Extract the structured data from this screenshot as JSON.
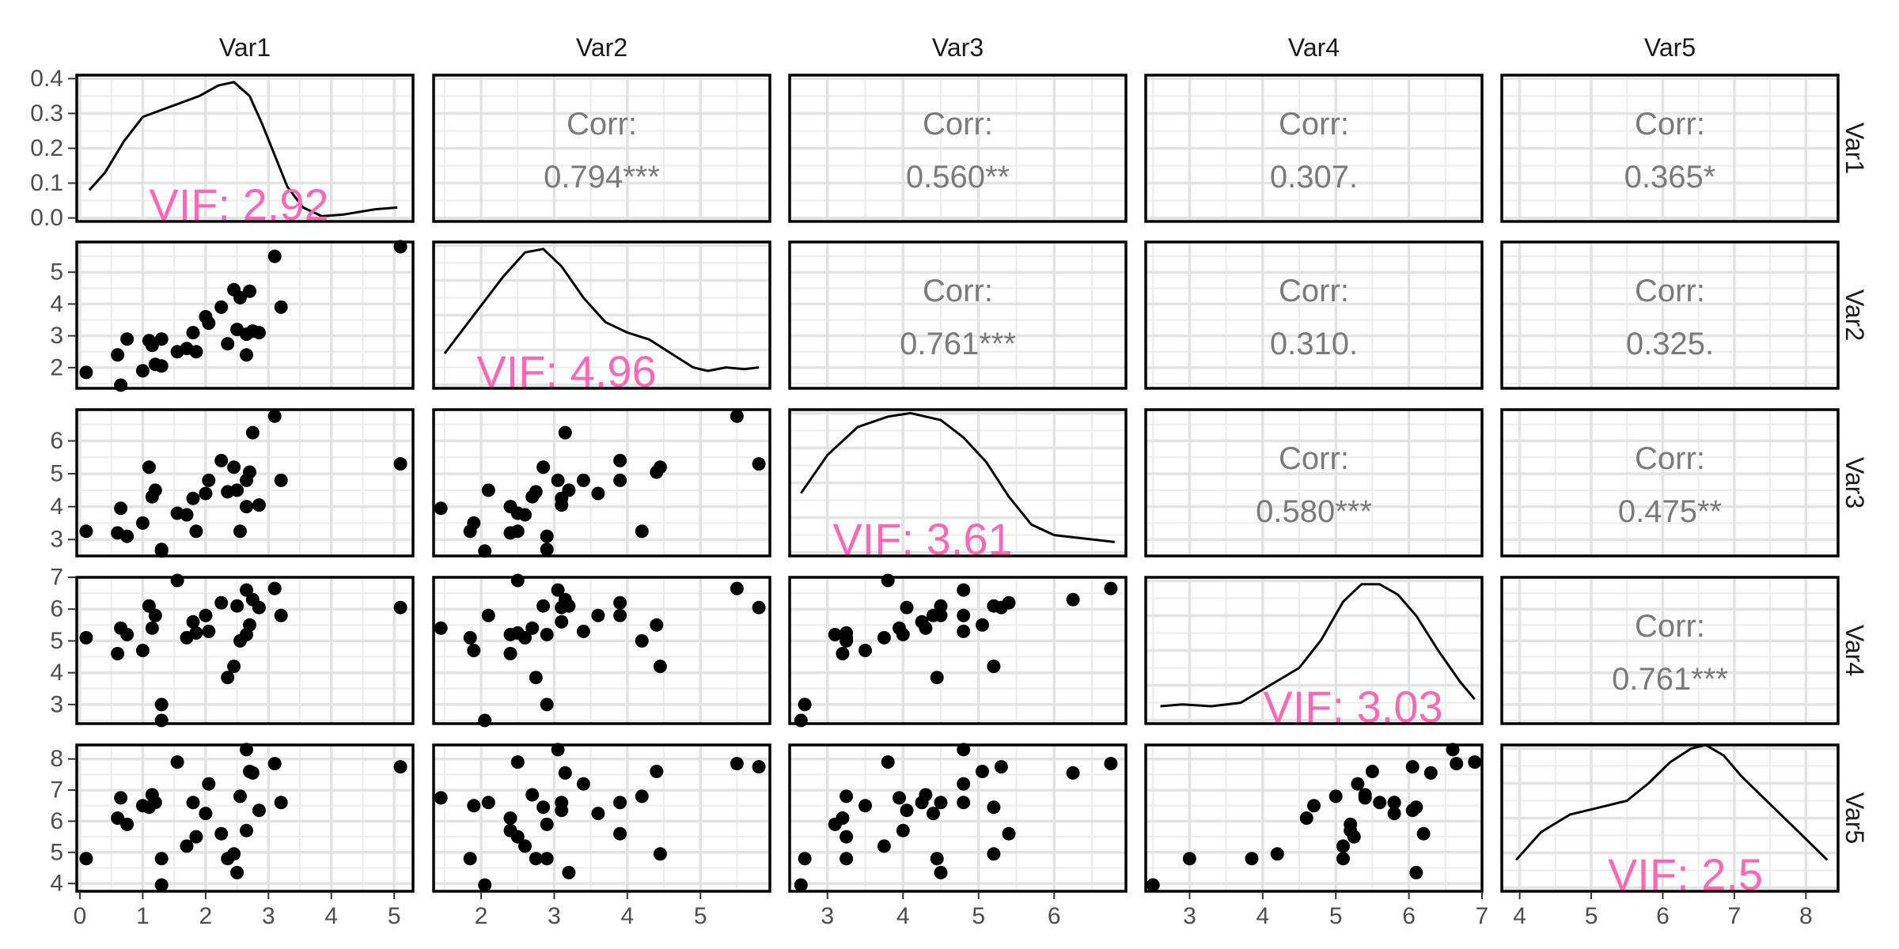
{
  "chart_data": {
    "type": "scatter",
    "variables": [
      "Var1",
      "Var2",
      "Var3",
      "Var4",
      "Var5"
    ],
    "column_labels": [
      "Var1",
      "Var2",
      "Var3",
      "Var4",
      "Var5"
    ],
    "row_labels": [
      "Var1",
      "Var2",
      "Var3",
      "Var4",
      "Var5"
    ],
    "corr_title": "Corr:",
    "correlations": [
      {
        "row": 0,
        "col": 1,
        "value": "0.794***"
      },
      {
        "row": 0,
        "col": 2,
        "value": "0.560**"
      },
      {
        "row": 0,
        "col": 3,
        "value": "0.307."
      },
      {
        "row": 0,
        "col": 4,
        "value": "0.365*"
      },
      {
        "row": 1,
        "col": 2,
        "value": "0.761***"
      },
      {
        "row": 1,
        "col": 3,
        "value": "0.310."
      },
      {
        "row": 1,
        "col": 4,
        "value": "0.325."
      },
      {
        "row": 2,
        "col": 3,
        "value": "0.580***"
      },
      {
        "row": 2,
        "col": 4,
        "value": "0.475**"
      },
      {
        "row": 3,
        "col": 4,
        "value": "0.761***"
      }
    ],
    "vif_labels": [
      "VIF: 2.92",
      "VIF: 4.96",
      "VIF: 3.61",
      "VIF: 3.03",
      "VIF: 2.5"
    ],
    "x_axes": [
      {
        "ticks": [
          0,
          1,
          2,
          3,
          4,
          5
        ],
        "range": [
          -0.05,
          5.3
        ]
      },
      {
        "ticks": [
          2,
          3,
          4,
          5
        ],
        "range": [
          1.35,
          5.95
        ]
      },
      {
        "ticks": [
          3,
          4,
          5,
          6
        ],
        "range": [
          2.5,
          6.95
        ]
      },
      {
        "ticks": [
          3,
          4,
          5,
          6,
          7
        ],
        "range": [
          2.4,
          7.0
        ]
      },
      {
        "ticks": [
          4,
          5,
          6,
          7,
          8
        ],
        "range": [
          3.75,
          8.45
        ]
      }
    ],
    "y_axes": [
      {
        "ticks": [
          "0.0",
          "0.1",
          "0.2",
          "0.3",
          "0.4"
        ],
        "range": [
          -0.01,
          0.41
        ]
      },
      {
        "ticks": [
          2,
          3,
          4,
          5
        ],
        "range": [
          1.35,
          5.95
        ]
      },
      {
        "ticks": [
          3,
          4,
          5,
          6
        ],
        "range": [
          2.5,
          6.95
        ]
      },
      {
        "ticks": [
          3,
          4,
          5,
          6,
          7
        ],
        "range": [
          2.4,
          7.0
        ]
      },
      {
        "ticks": [
          4,
          5,
          6,
          7,
          8
        ],
        "range": [
          3.75,
          8.45
        ]
      }
    ],
    "density_ylim": [
      -0.01,
      0.41
    ],
    "density_curves": [
      [
        [
          0.15,
          0.08
        ],
        [
          0.4,
          0.13
        ],
        [
          0.7,
          0.22
        ],
        [
          1.0,
          0.29
        ],
        [
          1.3,
          0.31
        ],
        [
          1.6,
          0.33
        ],
        [
          1.9,
          0.35
        ],
        [
          2.2,
          0.38
        ],
        [
          2.45,
          0.39
        ],
        [
          2.7,
          0.35
        ],
        [
          2.9,
          0.27
        ],
        [
          3.1,
          0.18
        ],
        [
          3.3,
          0.09
        ],
        [
          3.55,
          0.03
        ],
        [
          3.85,
          0.005
        ],
        [
          4.2,
          0.01
        ],
        [
          4.7,
          0.025
        ],
        [
          5.05,
          0.03
        ]
      ],
      [
        [
          1.5,
          0.09
        ],
        [
          1.9,
          0.2
        ],
        [
          2.3,
          0.31
        ],
        [
          2.6,
          0.38
        ],
        [
          2.85,
          0.39
        ],
        [
          3.1,
          0.34
        ],
        [
          3.4,
          0.25
        ],
        [
          3.7,
          0.18
        ],
        [
          4.0,
          0.15
        ],
        [
          4.3,
          0.13
        ],
        [
          4.6,
          0.09
        ],
        [
          4.9,
          0.05
        ],
        [
          5.1,
          0.04
        ],
        [
          5.35,
          0.05
        ],
        [
          5.6,
          0.045
        ],
        [
          5.8,
          0.05
        ]
      ],
      [
        [
          2.65,
          0.17
        ],
        [
          3.0,
          0.28
        ],
        [
          3.4,
          0.36
        ],
        [
          3.8,
          0.39
        ],
        [
          4.1,
          0.4
        ],
        [
          4.5,
          0.38
        ],
        [
          4.8,
          0.33
        ],
        [
          5.1,
          0.26
        ],
        [
          5.4,
          0.16
        ],
        [
          5.7,
          0.08
        ],
        [
          6.0,
          0.05
        ],
        [
          6.4,
          0.04
        ],
        [
          6.8,
          0.03
        ]
      ],
      [
        [
          2.6,
          0.04
        ],
        [
          2.9,
          0.045
        ],
        [
          3.3,
          0.04
        ],
        [
          3.7,
          0.05
        ],
        [
          4.1,
          0.1
        ],
        [
          4.5,
          0.15
        ],
        [
          4.8,
          0.23
        ],
        [
          5.1,
          0.34
        ],
        [
          5.35,
          0.39
        ],
        [
          5.6,
          0.39
        ],
        [
          5.85,
          0.36
        ],
        [
          6.1,
          0.3
        ],
        [
          6.4,
          0.2
        ],
        [
          6.7,
          0.11
        ],
        [
          6.9,
          0.06
        ]
      ],
      [
        [
          3.95,
          0.08
        ],
        [
          4.3,
          0.16
        ],
        [
          4.7,
          0.21
        ],
        [
          5.1,
          0.23
        ],
        [
          5.5,
          0.25
        ],
        [
          5.8,
          0.3
        ],
        [
          6.1,
          0.36
        ],
        [
          6.4,
          0.4
        ],
        [
          6.6,
          0.41
        ],
        [
          6.85,
          0.38
        ],
        [
          7.1,
          0.32
        ],
        [
          7.5,
          0.24
        ],
        [
          7.9,
          0.16
        ],
        [
          8.3,
          0.08
        ]
      ]
    ],
    "observations": [
      [
        0.1,
        1.85,
        3.25,
        5.1,
        4.8
      ],
      [
        0.6,
        2.4,
        3.2,
        4.6,
        6.1
      ],
      [
        0.65,
        1.45,
        3.95,
        5.4,
        6.75
      ],
      [
        0.75,
        2.9,
        3.1,
        5.2,
        5.9
      ],
      [
        1.0,
        1.9,
        3.5,
        4.7,
        6.5
      ],
      [
        1.1,
        2.85,
        5.2,
        6.1,
        6.45
      ],
      [
        1.15,
        2.7,
        4.3,
        5.4,
        6.85
      ],
      [
        1.2,
        2.1,
        4.5,
        5.8,
        6.6
      ],
      [
        1.3,
        2.9,
        2.7,
        3.0,
        4.8
      ],
      [
        1.3,
        2.05,
        2.65,
        2.5,
        3.95
      ],
      [
        1.55,
        2.5,
        3.8,
        6.9,
        7.9
      ],
      [
        1.7,
        2.6,
        3.75,
        5.1,
        5.2
      ],
      [
        1.8,
        3.1,
        4.25,
        5.6,
        6.6
      ],
      [
        1.85,
        2.5,
        3.25,
        5.25,
        5.5
      ],
      [
        2.0,
        3.6,
        4.4,
        5.8,
        6.25
      ],
      [
        2.05,
        3.4,
        4.8,
        5.3,
        7.2
      ],
      [
        2.25,
        3.9,
        5.4,
        6.2,
        5.6
      ],
      [
        2.35,
        2.75,
        4.45,
        3.85,
        4.8
      ],
      [
        2.45,
        4.45,
        5.2,
        4.2,
        4.95
      ],
      [
        2.5,
        3.2,
        4.5,
        6.1,
        4.35
      ],
      [
        2.55,
        4.2,
        3.25,
        5.0,
        6.8
      ],
      [
        2.65,
        2.4,
        4.0,
        5.2,
        5.7
      ],
      [
        2.65,
        3.05,
        4.8,
        6.6,
        8.3
      ],
      [
        2.7,
        4.4,
        5.05,
        5.5,
        7.6
      ],
      [
        2.75,
        3.15,
        6.25,
        6.3,
        7.55
      ],
      [
        2.85,
        3.1,
        4.05,
        6.05,
        6.35
      ],
      [
        3.1,
        5.5,
        6.75,
        6.65,
        7.85
      ],
      [
        3.2,
        3.9,
        4.8,
        5.8,
        6.6
      ],
      [
        5.1,
        5.8,
        5.3,
        6.05,
        7.75
      ]
    ]
  }
}
